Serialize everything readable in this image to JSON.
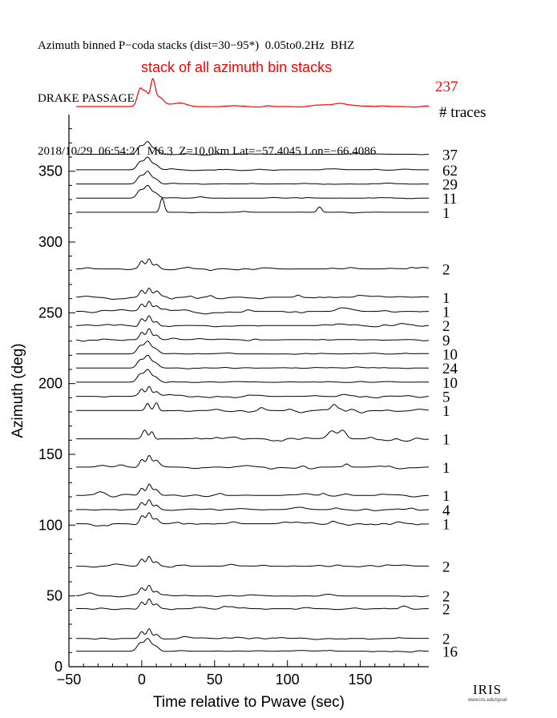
{
  "header": {
    "line1": "Azimuth binned P−coda stacks (dist=30−95*)  0.05to0.2Hz  BHZ",
    "line2": "DRAKE PASSAGE",
    "line3": "2018/10/29  06:54:21  M6.3  Z=10.0km Lat=−57.4045 Lon=−66.4086"
  },
  "colors": {
    "stack": "#ff0000",
    "trace": "#000000",
    "axis": "#000000"
  },
  "chart_data": {
    "type": "line",
    "title": "",
    "xlabel": "Time relative to Pwave (sec)",
    "ylabel": "Azimuth (deg)",
    "xlim": [
      -50,
      197
    ],
    "ylim": [
      0,
      390
    ],
    "x_ticks": [
      "−50",
      "0",
      "50",
      "100",
      "150"
    ],
    "y_ticks": [
      "0",
      "50",
      "100",
      "150",
      "200",
      "250",
      "300",
      "350"
    ],
    "stack": {
      "label": "stack of all azimuth bin stacks",
      "count": "237"
    },
    "count_header": "# traces",
    "traces": [
      {
        "azimuth": 362,
        "count": "37"
      },
      {
        "azimuth": 351,
        "count": "62"
      },
      {
        "azimuth": 341,
        "count": "29"
      },
      {
        "azimuth": 331,
        "count": "11"
      },
      {
        "azimuth": 321,
        "count": "1"
      },
      {
        "azimuth": 281,
        "count": "2"
      },
      {
        "azimuth": 261,
        "count": "1"
      },
      {
        "azimuth": 251,
        "count": "1"
      },
      {
        "azimuth": 241,
        "count": "2"
      },
      {
        "azimuth": 231,
        "count": "9"
      },
      {
        "azimuth": 221,
        "count": "10"
      },
      {
        "azimuth": 211,
        "count": "24"
      },
      {
        "azimuth": 201,
        "count": "10"
      },
      {
        "azimuth": 191,
        "count": "5"
      },
      {
        "azimuth": 181,
        "count": "1"
      },
      {
        "azimuth": 161,
        "count": "1"
      },
      {
        "azimuth": 141,
        "count": "1"
      },
      {
        "azimuth": 121,
        "count": "1"
      },
      {
        "azimuth": 111,
        "count": "4"
      },
      {
        "azimuth": 101,
        "count": "1"
      },
      {
        "azimuth": 71,
        "count": "2"
      },
      {
        "azimuth": 50,
        "count": "2"
      },
      {
        "azimuth": 41,
        "count": "2"
      },
      {
        "azimuth": 20,
        "count": "2"
      },
      {
        "azimuth": 11,
        "count": "16"
      }
    ]
  },
  "logo": {
    "word": "IRIS",
    "url": "www.iris.edu/spud"
  }
}
